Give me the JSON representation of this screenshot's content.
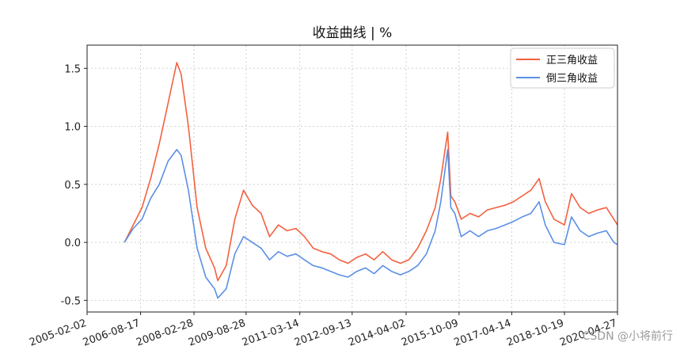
{
  "chart_data": {
    "type": "line",
    "title": "收益曲线 | %",
    "xlabel": "",
    "ylabel": "",
    "x_tick_labels": [
      "2005-02-02",
      "2006-08-17",
      "2008-02-28",
      "2009-08-28",
      "2011-03-14",
      "2012-09-13",
      "2014-04-02",
      "2015-10-09",
      "2017-04-14",
      "2018-10-19",
      "2020-04-27"
    ],
    "y_ticks": [
      -0.5,
      0.0,
      0.5,
      1.0,
      1.5
    ],
    "y_tick_labels": [
      "-0.5",
      "0.0",
      "0.5",
      "1.0",
      "1.5"
    ],
    "xlim": [
      "2005-02-02",
      "2020-04-27"
    ],
    "ylim": [
      -0.6,
      1.7
    ],
    "grid": true,
    "legend_position": "top-right",
    "x": [
      "2006-03-01",
      "2006-06-01",
      "2006-09-01",
      "2006-12-01",
      "2007-03-01",
      "2007-06-01",
      "2007-09-01",
      "2007-10-16",
      "2008-01-01",
      "2008-04-01",
      "2008-07-01",
      "2008-10-01",
      "2008-11-04",
      "2009-02-01",
      "2009-05-01",
      "2009-08-01",
      "2009-11-01",
      "2010-02-01",
      "2010-05-01",
      "2010-08-01",
      "2010-11-01",
      "2011-02-01",
      "2011-05-01",
      "2011-08-01",
      "2011-11-01",
      "2012-02-01",
      "2012-05-01",
      "2012-08-01",
      "2012-11-01",
      "2013-02-01",
      "2013-05-01",
      "2013-08-01",
      "2013-11-01",
      "2014-02-01",
      "2014-05-01",
      "2014-08-01",
      "2014-11-01",
      "2015-02-01",
      "2015-04-01",
      "2015-06-12",
      "2015-07-15",
      "2015-08-26",
      "2015-11-01",
      "2016-02-01",
      "2016-05-01",
      "2016-08-01",
      "2016-11-01",
      "2017-02-01",
      "2017-05-01",
      "2017-08-01",
      "2017-11-01",
      "2018-01-26",
      "2018-04-01",
      "2018-07-01",
      "2018-10-19",
      "2019-01-01",
      "2019-04-01",
      "2019-07-01",
      "2019-10-01",
      "2020-01-01",
      "2020-03-20",
      "2020-04-27"
    ],
    "series": [
      {
        "name": "正三角收益",
        "color": "#f4603e",
        "values": [
          0.0,
          0.15,
          0.3,
          0.55,
          0.85,
          1.2,
          1.55,
          1.45,
          1.0,
          0.3,
          -0.05,
          -0.22,
          -0.33,
          -0.2,
          0.2,
          0.45,
          0.32,
          0.25,
          0.05,
          0.15,
          0.1,
          0.12,
          0.05,
          -0.05,
          -0.08,
          -0.1,
          -0.15,
          -0.18,
          -0.13,
          -0.1,
          -0.15,
          -0.08,
          -0.15,
          -0.18,
          -0.15,
          -0.05,
          0.1,
          0.3,
          0.55,
          0.95,
          0.4,
          0.35,
          0.2,
          0.25,
          0.22,
          0.28,
          0.3,
          0.32,
          0.35,
          0.4,
          0.45,
          0.55,
          0.35,
          0.2,
          0.15,
          0.42,
          0.3,
          0.25,
          0.28,
          0.3,
          0.2,
          0.15
        ]
      },
      {
        "name": "倒三角收益",
        "color": "#5b8fe5",
        "values": [
          0.0,
          0.12,
          0.2,
          0.38,
          0.5,
          0.7,
          0.8,
          0.75,
          0.45,
          -0.05,
          -0.3,
          -0.4,
          -0.48,
          -0.4,
          -0.1,
          0.05,
          0.0,
          -0.05,
          -0.15,
          -0.08,
          -0.12,
          -0.1,
          -0.15,
          -0.2,
          -0.22,
          -0.25,
          -0.28,
          -0.3,
          -0.25,
          -0.22,
          -0.27,
          -0.2,
          -0.25,
          -0.28,
          -0.25,
          -0.2,
          -0.1,
          0.1,
          0.35,
          0.8,
          0.3,
          0.25,
          0.05,
          0.1,
          0.05,
          0.1,
          0.12,
          0.15,
          0.18,
          0.22,
          0.25,
          0.35,
          0.15,
          0.0,
          -0.02,
          0.22,
          0.1,
          0.05,
          0.08,
          0.1,
          0.0,
          -0.02
        ]
      }
    ]
  },
  "watermark": "CSDN @小将前行"
}
